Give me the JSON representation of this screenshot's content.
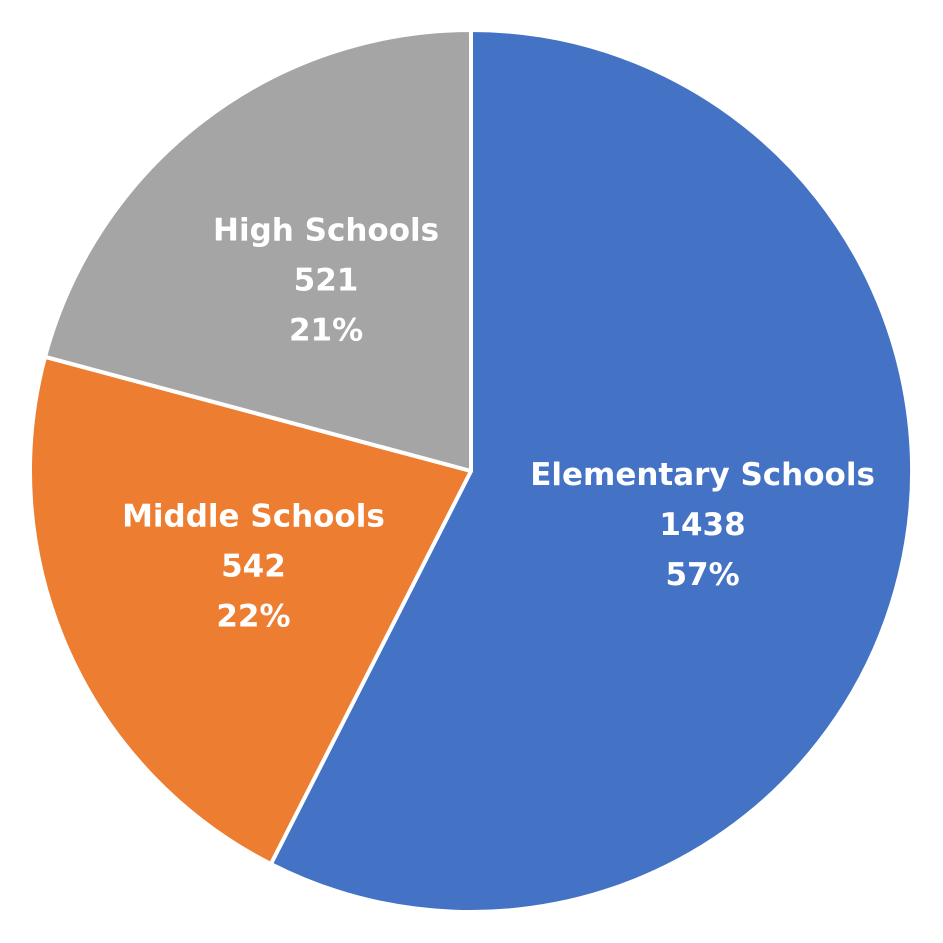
{
  "chart_data": {
    "type": "pie",
    "categories": [
      "Elementary Schools",
      "Middle Schools",
      "High Schools"
    ],
    "values": [
      1438,
      542,
      521
    ],
    "percents": [
      57,
      22,
      21
    ],
    "percent_labels": [
      "57%",
      "22%",
      "21%"
    ],
    "colors": [
      "#4472c4",
      "#ed7d31",
      "#a5a5a5"
    ]
  }
}
